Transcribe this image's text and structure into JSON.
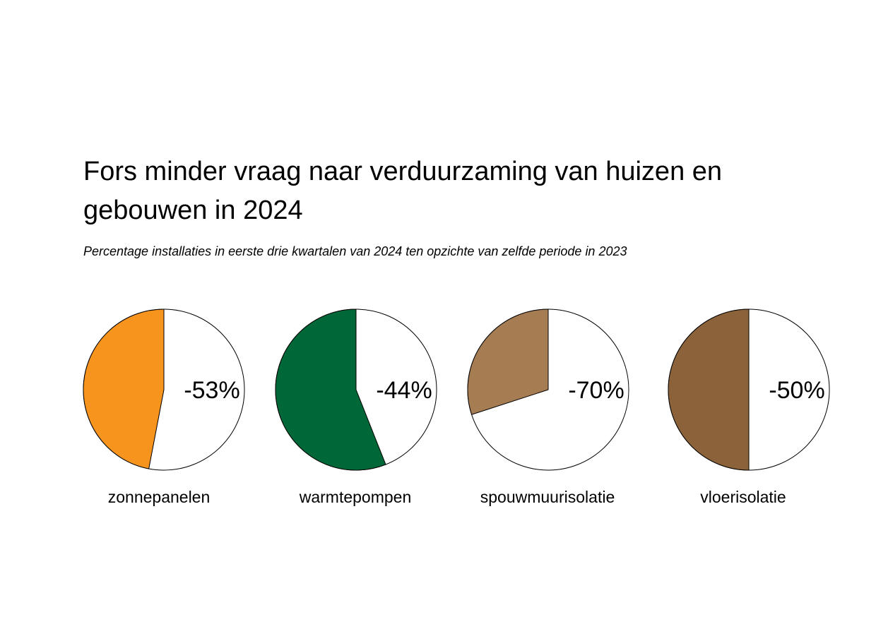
{
  "chart_data": {
    "type": "pie",
    "title": "Fors minder vraag naar verduurzaming van huizen en gebouwen in 2024",
    "subtitle": "Percentage installaties in eerste drie kwartalen van 2024 ten opzichte van zelfde periode in 2023",
    "items": [
      {
        "category": "zonnepanelen",
        "label": "-53%",
        "value": -53,
        "color": "#F7941E"
      },
      {
        "category": "warmtepompen",
        "label": "-44%",
        "value": -44,
        "color": "#006838"
      },
      {
        "category": "spouwmuurisolatie",
        "label": "-70%",
        "value": -70,
        "color": "#A67C52"
      },
      {
        "category": "vloerisolatie",
        "label": "-50%",
        "value": -50,
        "color": "#8B6239"
      }
    ]
  }
}
